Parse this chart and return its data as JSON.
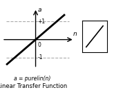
{
  "title": "Linear Transfer Function",
  "formula": "a = purelin(n)",
  "x_label": "n",
  "y_label": "a",
  "line_x": [
    -1.4,
    1.4
  ],
  "line_y": [
    -1.4,
    1.4
  ],
  "hline_y_pos": 1.0,
  "hline_y_neg": -1.0,
  "axis_color": "#000000",
  "line_color": "#000000",
  "dashed_color": "#aaaaaa",
  "bg_color": "#ffffff",
  "xlim": [
    -1.7,
    2.0
  ],
  "ylim": [
    -1.7,
    1.9
  ],
  "tick_label_0": "0",
  "tick_label_p1": "+1",
  "tick_label_n1": "-1"
}
